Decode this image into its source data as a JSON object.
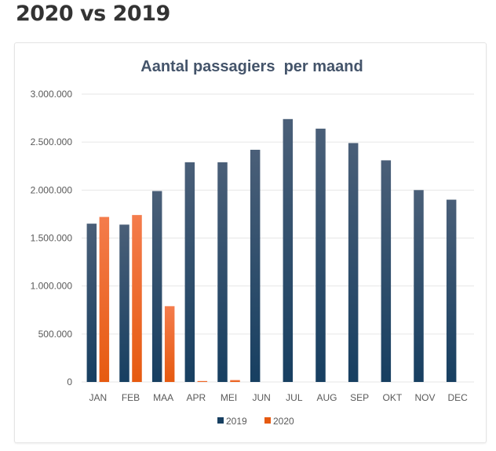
{
  "page": {
    "heading": "2020 vs 2019"
  },
  "colors": {
    "series_2019_top": "#4a5f78",
    "series_2019_bottom": "#173f61",
    "series_2020_top": "#f47c4c",
    "series_2020_bottom": "#e65a10",
    "gridline": "#e6e6e6",
    "title": "#44546a"
  },
  "chart_data": {
    "type": "bar",
    "title": "Aantal passagiers  per maand",
    "xlabel": "",
    "ylabel": "",
    "ylim": [
      0,
      3000000
    ],
    "yticks": [
      0,
      500000,
      1000000,
      1500000,
      2000000,
      2500000,
      3000000
    ],
    "ytick_labels": [
      "0",
      "500.000",
      "1.000.000",
      "1.500.000",
      "2.000.000",
      "2.500.000",
      "3.000.000"
    ],
    "grid": true,
    "legend_position": "bottom",
    "categories": [
      "JAN",
      "FEB",
      "MAA",
      "APR",
      "MEI",
      "JUN",
      "JUL",
      "AUG",
      "SEP",
      "OKT",
      "NOV",
      "DEC"
    ],
    "series": [
      {
        "name": "2019",
        "values": [
          1650000,
          1640000,
          1990000,
          2290000,
          2290000,
          2420000,
          2740000,
          2640000,
          2490000,
          2310000,
          2000000,
          1900000
        ]
      },
      {
        "name": "2020",
        "values": [
          1720000,
          1740000,
          790000,
          10000,
          20000,
          null,
          null,
          null,
          null,
          null,
          null,
          null
        ]
      }
    ]
  }
}
